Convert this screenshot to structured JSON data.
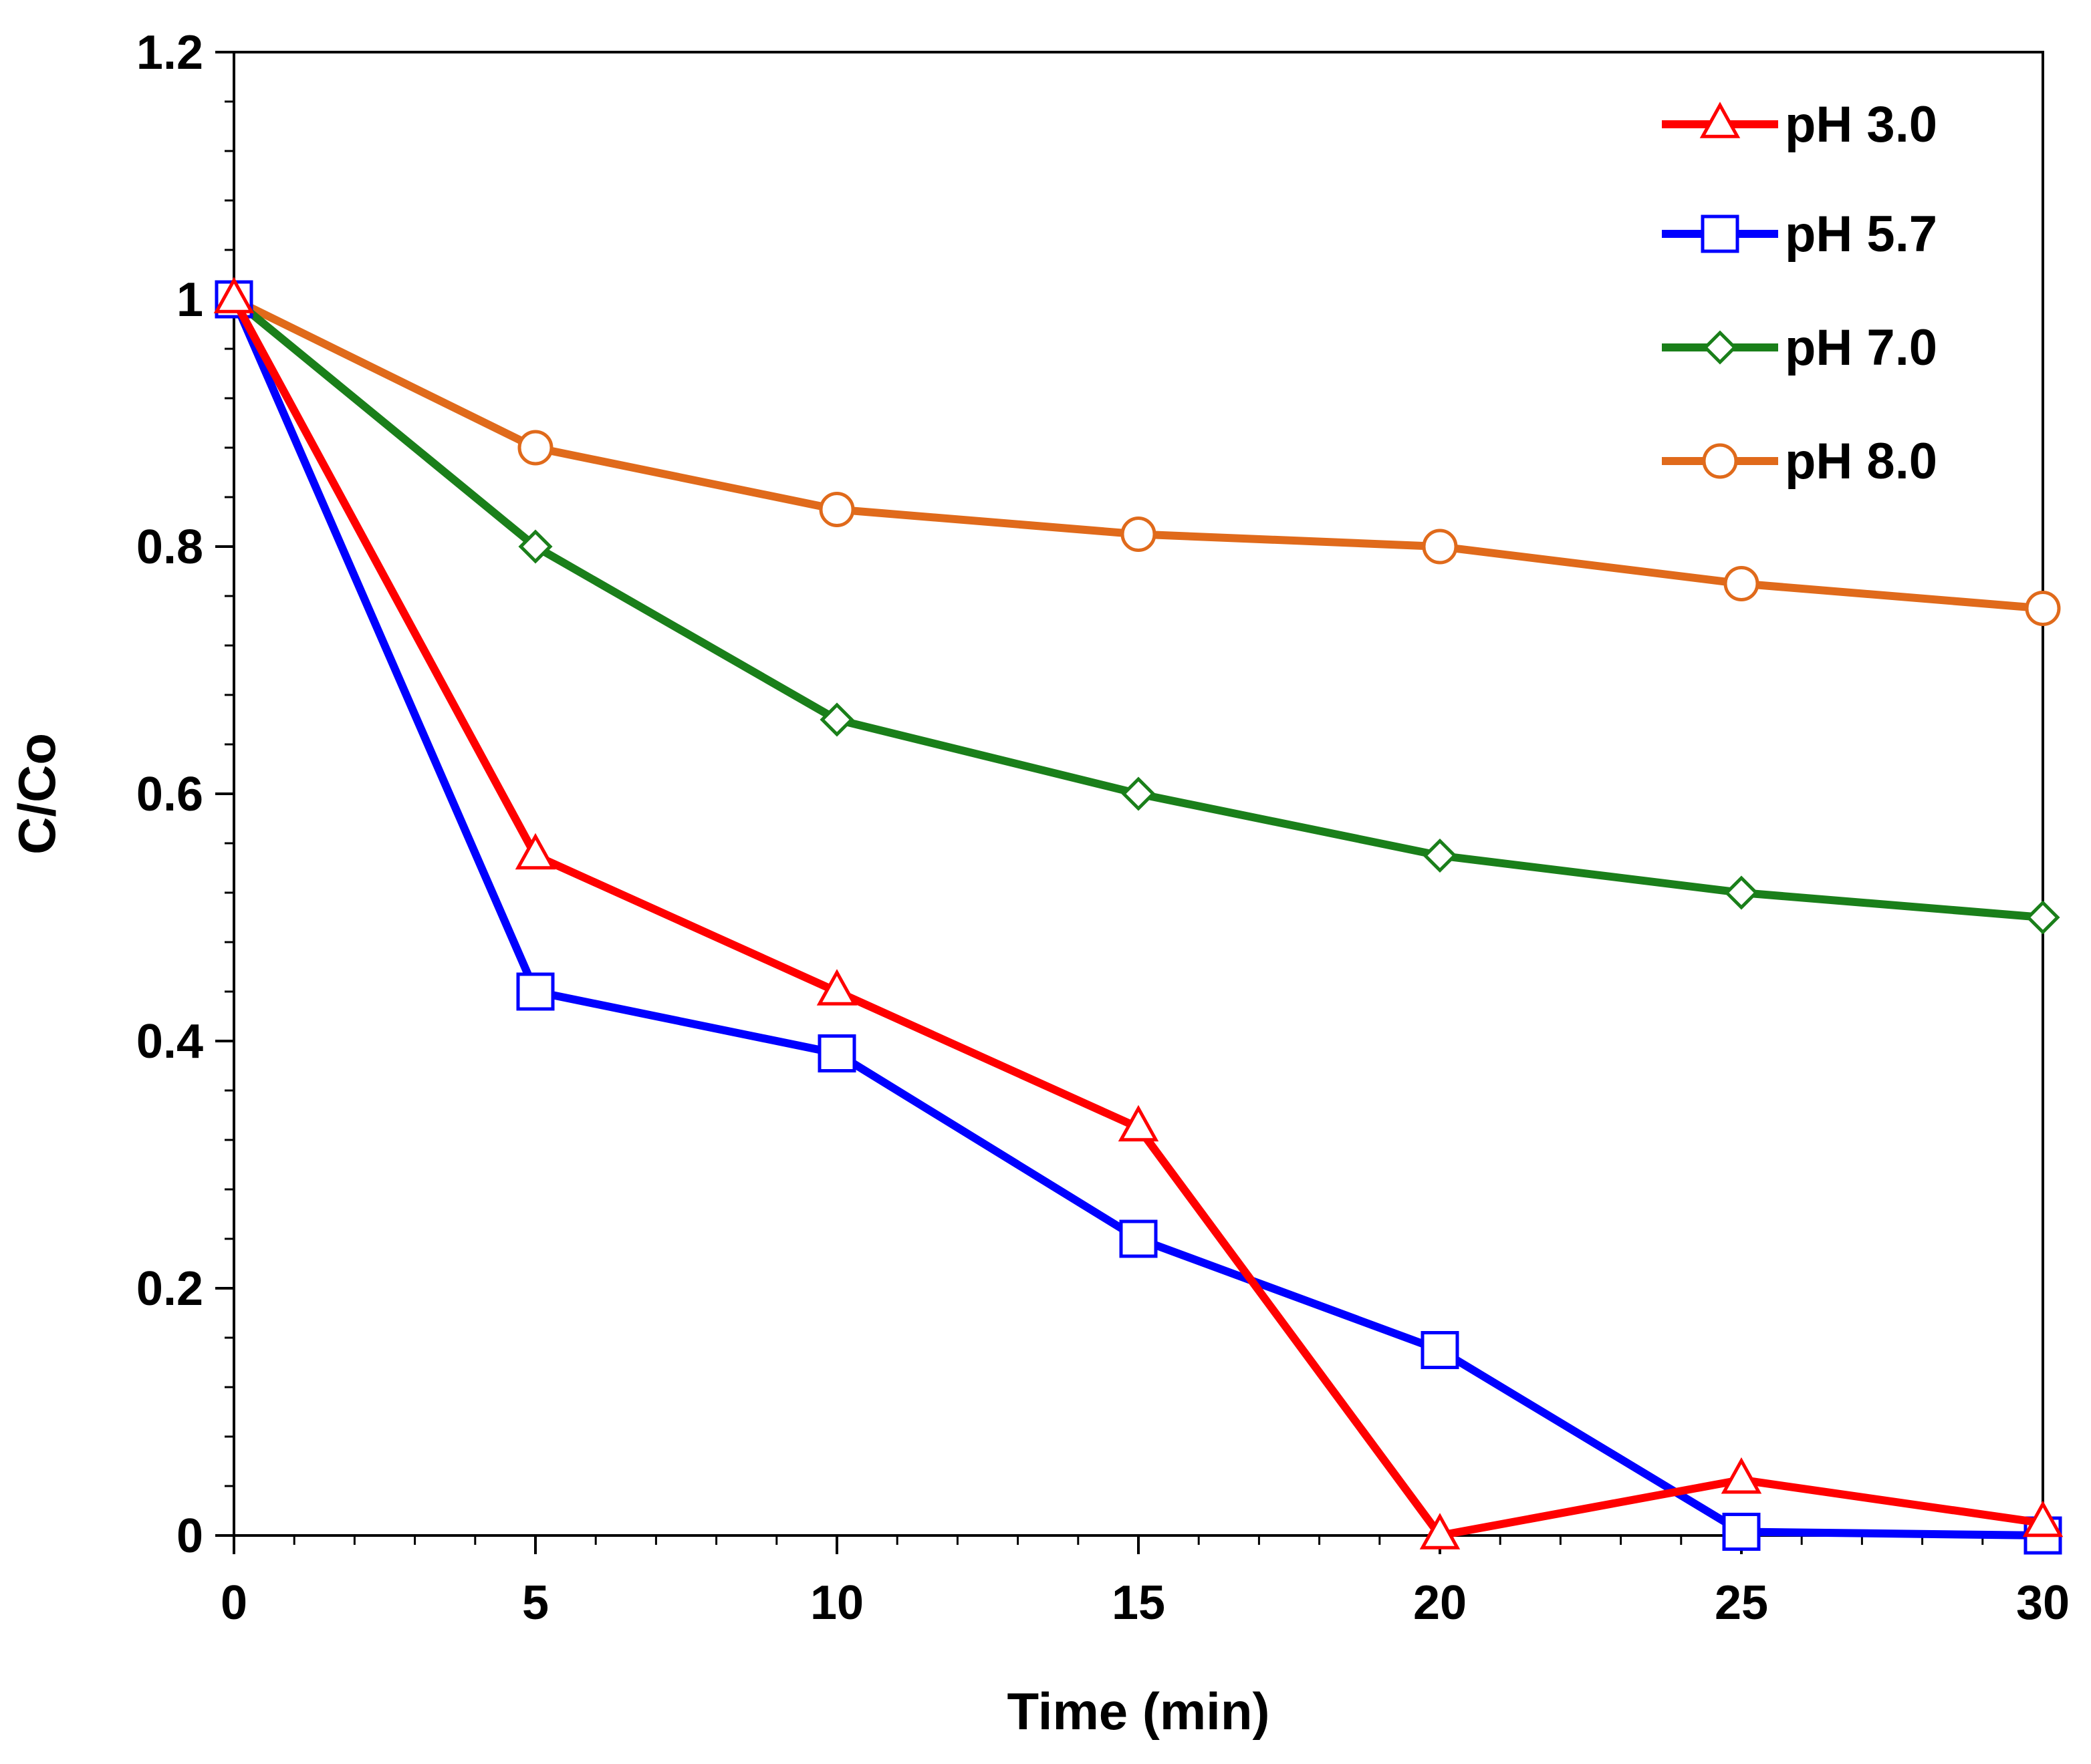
{
  "chart_data": {
    "type": "line",
    "title": "",
    "xlabel": "Time (min)",
    "ylabel": "C/Co",
    "xlim": [
      0,
      30
    ],
    "ylim": [
      0,
      1.2
    ],
    "x_ticks": [
      0,
      5,
      10,
      15,
      20,
      25,
      30
    ],
    "x_tick_labels": [
      "0",
      "5",
      "10",
      "15",
      "20",
      "25",
      "30"
    ],
    "y_ticks": [
      0,
      0.2,
      0.4,
      0.6,
      0.8,
      1,
      1.2
    ],
    "y_tick_labels": [
      "0",
      "0.2",
      "0.4",
      "0.6",
      "0.8",
      "1",
      "1.2"
    ],
    "grid": false,
    "legend_position": "top-right",
    "x": [
      0,
      5,
      10,
      15,
      20,
      25,
      30
    ],
    "series": [
      {
        "name": "pH 3.0",
        "color": "#ff0000",
        "marker": "triangle",
        "values": [
          1.0,
          0.55,
          0.44,
          0.33,
          0.0,
          0.045,
          0.01
        ]
      },
      {
        "name": "pH 5.7",
        "color": "#0000ff",
        "marker": "square",
        "values": [
          1.0,
          0.44,
          0.39,
          0.24,
          0.15,
          0.003,
          0.0
        ]
      },
      {
        "name": "pH 7.0",
        "color": "#1a7f1a",
        "marker": "diamond",
        "values": [
          1.0,
          0.8,
          0.66,
          0.6,
          0.55,
          0.52,
          0.5
        ]
      },
      {
        "name": "pH 8.0",
        "color": "#e06a1b",
        "marker": "circle",
        "values": [
          1.0,
          0.88,
          0.83,
          0.81,
          0.8,
          0.77,
          0.75
        ]
      }
    ]
  }
}
